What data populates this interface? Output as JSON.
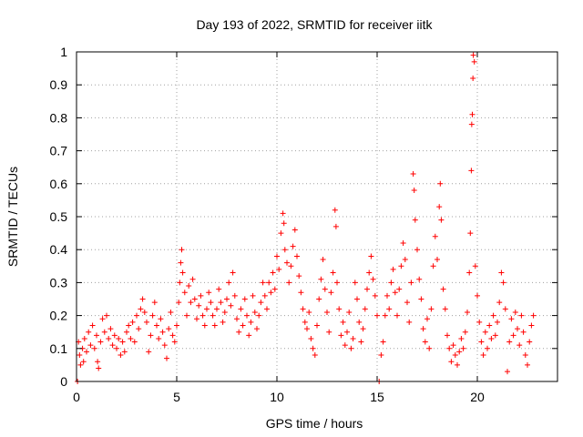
{
  "chart_data": {
    "type": "scatter",
    "title": "Day 193 of 2022, SRMTID for receiver iitk",
    "xlabel": "GPS time / hours",
    "ylabel": "SRMTID / TECUs",
    "xlim": [
      0,
      24
    ],
    "ylim": [
      0,
      1
    ],
    "xticks": [
      0,
      5,
      10,
      15,
      20
    ],
    "xtick_labels": [
      "0",
      "5",
      "10",
      "15",
      "20"
    ],
    "yticks": [
      0,
      0.1,
      0.2,
      0.3,
      0.4,
      0.5,
      0.6,
      0.7,
      0.8,
      0.9,
      1
    ],
    "ytick_labels": [
      "0",
      "0.1",
      "0.2",
      "0.3",
      "0.4",
      "0.5",
      "0.6",
      "0.7",
      "0.8",
      "0.9",
      "1"
    ],
    "grid": true,
    "marker": "+",
    "marker_color": "#ff0000",
    "series": [
      {
        "name": "SRMTID",
        "points": [
          [
            0.05,
            0.0
          ],
          [
            0.1,
            0.12
          ],
          [
            0.15,
            0.08
          ],
          [
            0.2,
            0.05
          ],
          [
            0.3,
            0.1
          ],
          [
            0.35,
            0.06
          ],
          [
            0.4,
            0.13
          ],
          [
            0.5,
            0.09
          ],
          [
            0.6,
            0.15
          ],
          [
            0.7,
            0.11
          ],
          [
            0.8,
            0.17
          ],
          [
            0.9,
            0.1
          ],
          [
            1.0,
            0.14
          ],
          [
            1.05,
            0.06
          ],
          [
            1.1,
            0.04
          ],
          [
            1.2,
            0.12
          ],
          [
            1.3,
            0.19
          ],
          [
            1.4,
            0.15
          ],
          [
            1.5,
            0.2
          ],
          [
            1.6,
            0.13
          ],
          [
            1.7,
            0.16
          ],
          [
            1.8,
            0.11
          ],
          [
            1.9,
            0.14
          ],
          [
            2.0,
            0.1
          ],
          [
            2.1,
            0.13
          ],
          [
            2.2,
            0.08
          ],
          [
            2.3,
            0.12
          ],
          [
            2.4,
            0.09
          ],
          [
            2.5,
            0.15
          ],
          [
            2.6,
            0.17
          ],
          [
            2.7,
            0.13
          ],
          [
            2.8,
            0.18
          ],
          [
            2.9,
            0.12
          ],
          [
            3.0,
            0.2
          ],
          [
            3.1,
            0.16
          ],
          [
            3.2,
            0.22
          ],
          [
            3.3,
            0.25
          ],
          [
            3.4,
            0.21
          ],
          [
            3.5,
            0.18
          ],
          [
            3.6,
            0.09
          ],
          [
            3.7,
            0.14
          ],
          [
            3.8,
            0.2
          ],
          [
            3.9,
            0.24
          ],
          [
            4.0,
            0.17
          ],
          [
            4.1,
            0.13
          ],
          [
            4.2,
            0.19
          ],
          [
            4.3,
            0.15
          ],
          [
            4.4,
            0.11
          ],
          [
            4.5,
            0.07
          ],
          [
            4.6,
            0.16
          ],
          [
            4.7,
            0.21
          ],
          [
            4.8,
            0.14
          ],
          [
            4.9,
            0.12
          ],
          [
            5.0,
            0.17
          ],
          [
            5.1,
            0.24
          ],
          [
            5.15,
            0.3
          ],
          [
            5.2,
            0.36
          ],
          [
            5.25,
            0.4
          ],
          [
            5.3,
            0.33
          ],
          [
            5.4,
            0.27
          ],
          [
            5.5,
            0.2
          ],
          [
            5.6,
            0.29
          ],
          [
            5.7,
            0.24
          ],
          [
            5.8,
            0.31
          ],
          [
            5.9,
            0.25
          ],
          [
            6.0,
            0.19
          ],
          [
            6.1,
            0.23
          ],
          [
            6.2,
            0.26
          ],
          [
            6.3,
            0.2
          ],
          [
            6.4,
            0.17
          ],
          [
            6.5,
            0.22
          ],
          [
            6.6,
            0.27
          ],
          [
            6.7,
            0.24
          ],
          [
            6.8,
            0.2
          ],
          [
            6.9,
            0.17
          ],
          [
            7.0,
            0.22
          ],
          [
            7.1,
            0.28
          ],
          [
            7.2,
            0.24
          ],
          [
            7.3,
            0.18
          ],
          [
            7.4,
            0.21
          ],
          [
            7.5,
            0.25
          ],
          [
            7.6,
            0.3
          ],
          [
            7.7,
            0.23
          ],
          [
            7.8,
            0.33
          ],
          [
            7.9,
            0.26
          ],
          [
            8.0,
            0.19
          ],
          [
            8.1,
            0.15
          ],
          [
            8.2,
            0.22
          ],
          [
            8.3,
            0.17
          ],
          [
            8.4,
            0.25
          ],
          [
            8.5,
            0.2
          ],
          [
            8.6,
            0.14
          ],
          [
            8.7,
            0.18
          ],
          [
            8.8,
            0.26
          ],
          [
            8.9,
            0.21
          ],
          [
            9.0,
            0.16
          ],
          [
            9.1,
            0.2
          ],
          [
            9.2,
            0.24
          ],
          [
            9.3,
            0.3
          ],
          [
            9.4,
            0.26
          ],
          [
            9.5,
            0.22
          ],
          [
            9.6,
            0.3
          ],
          [
            9.7,
            0.27
          ],
          [
            9.8,
            0.33
          ],
          [
            9.9,
            0.28
          ],
          [
            10.0,
            0.38
          ],
          [
            10.1,
            0.34
          ],
          [
            10.2,
            0.45
          ],
          [
            10.3,
            0.51
          ],
          [
            10.35,
            0.48
          ],
          [
            10.4,
            0.4
          ],
          [
            10.5,
            0.36
          ],
          [
            10.6,
            0.3
          ],
          [
            10.7,
            0.35
          ],
          [
            10.8,
            0.41
          ],
          [
            10.9,
            0.46
          ],
          [
            11.0,
            0.38
          ],
          [
            11.1,
            0.32
          ],
          [
            11.2,
            0.27
          ],
          [
            11.3,
            0.22
          ],
          [
            11.4,
            0.18
          ],
          [
            11.5,
            0.16
          ],
          [
            11.6,
            0.21
          ],
          [
            11.7,
            0.13
          ],
          [
            11.8,
            0.1
          ],
          [
            11.9,
            0.08
          ],
          [
            12.0,
            0.17
          ],
          [
            12.1,
            0.25
          ],
          [
            12.2,
            0.31
          ],
          [
            12.3,
            0.37
          ],
          [
            12.4,
            0.28
          ],
          [
            12.5,
            0.21
          ],
          [
            12.6,
            0.15
          ],
          [
            12.7,
            0.27
          ],
          [
            12.8,
            0.33
          ],
          [
            12.9,
            0.52
          ],
          [
            12.95,
            0.47
          ],
          [
            13.0,
            0.3
          ],
          [
            13.1,
            0.22
          ],
          [
            13.2,
            0.14
          ],
          [
            13.3,
            0.18
          ],
          [
            13.4,
            0.11
          ],
          [
            13.5,
            0.15
          ],
          [
            13.6,
            0.21
          ],
          [
            13.7,
            0.1
          ],
          [
            13.8,
            0.13
          ],
          [
            13.9,
            0.3
          ],
          [
            14.0,
            0.25
          ],
          [
            14.1,
            0.18
          ],
          [
            14.2,
            0.12
          ],
          [
            14.3,
            0.16
          ],
          [
            14.4,
            0.22
          ],
          [
            14.5,
            0.28
          ],
          [
            14.6,
            0.33
          ],
          [
            14.7,
            0.38
          ],
          [
            14.8,
            0.31
          ],
          [
            14.9,
            0.26
          ],
          [
            15.0,
            0.2
          ],
          [
            15.1,
            0.0
          ],
          [
            15.2,
            0.08
          ],
          [
            15.3,
            0.12
          ],
          [
            15.4,
            0.2
          ],
          [
            15.5,
            0.26
          ],
          [
            15.6,
            0.22
          ],
          [
            15.7,
            0.3
          ],
          [
            15.8,
            0.34
          ],
          [
            15.9,
            0.27
          ],
          [
            16.0,
            0.2
          ],
          [
            16.1,
            0.28
          ],
          [
            16.2,
            0.35
          ],
          [
            16.3,
            0.42
          ],
          [
            16.4,
            0.37
          ],
          [
            16.5,
            0.24
          ],
          [
            16.6,
            0.18
          ],
          [
            16.7,
            0.3
          ],
          [
            16.8,
            0.63
          ],
          [
            16.85,
            0.58
          ],
          [
            16.9,
            0.49
          ],
          [
            17.0,
            0.4
          ],
          [
            17.1,
            0.31
          ],
          [
            17.2,
            0.25
          ],
          [
            17.3,
            0.16
          ],
          [
            17.4,
            0.12
          ],
          [
            17.5,
            0.19
          ],
          [
            17.6,
            0.1
          ],
          [
            17.7,
            0.22
          ],
          [
            17.8,
            0.35
          ],
          [
            17.9,
            0.44
          ],
          [
            18.0,
            0.37
          ],
          [
            18.1,
            0.53
          ],
          [
            18.15,
            0.6
          ],
          [
            18.2,
            0.49
          ],
          [
            18.3,
            0.28
          ],
          [
            18.4,
            0.22
          ],
          [
            18.5,
            0.14
          ],
          [
            18.6,
            0.1
          ],
          [
            18.7,
            0.06
          ],
          [
            18.8,
            0.11
          ],
          [
            18.9,
            0.08
          ],
          [
            19.0,
            0.05
          ],
          [
            19.1,
            0.09
          ],
          [
            19.2,
            0.13
          ],
          [
            19.3,
            0.1
          ],
          [
            19.4,
            0.15
          ],
          [
            19.5,
            0.21
          ],
          [
            19.6,
            0.33
          ],
          [
            19.65,
            0.45
          ],
          [
            19.7,
            0.64
          ],
          [
            19.72,
            0.78
          ],
          [
            19.75,
            0.81
          ],
          [
            19.78,
            0.92
          ],
          [
            19.8,
            0.99
          ],
          [
            19.85,
            0.97
          ],
          [
            19.9,
            0.35
          ],
          [
            20.0,
            0.26
          ],
          [
            20.1,
            0.18
          ],
          [
            20.2,
            0.12
          ],
          [
            20.3,
            0.08
          ],
          [
            20.4,
            0.15
          ],
          [
            20.5,
            0.1
          ],
          [
            20.6,
            0.17
          ],
          [
            20.7,
            0.13
          ],
          [
            20.8,
            0.2
          ],
          [
            20.9,
            0.14
          ],
          [
            21.0,
            0.18
          ],
          [
            21.1,
            0.24
          ],
          [
            21.2,
            0.33
          ],
          [
            21.3,
            0.3
          ],
          [
            21.4,
            0.22
          ],
          [
            21.5,
            0.03
          ],
          [
            21.6,
            0.12
          ],
          [
            21.7,
            0.19
          ],
          [
            21.8,
            0.14
          ],
          [
            21.9,
            0.21
          ],
          [
            22.0,
            0.16
          ],
          [
            22.1,
            0.11
          ],
          [
            22.2,
            0.2
          ],
          [
            22.3,
            0.15
          ],
          [
            22.4,
            0.08
          ],
          [
            22.5,
            0.05
          ],
          [
            22.6,
            0.12
          ],
          [
            22.7,
            0.17
          ],
          [
            22.8,
            0.2
          ]
        ]
      }
    ]
  }
}
